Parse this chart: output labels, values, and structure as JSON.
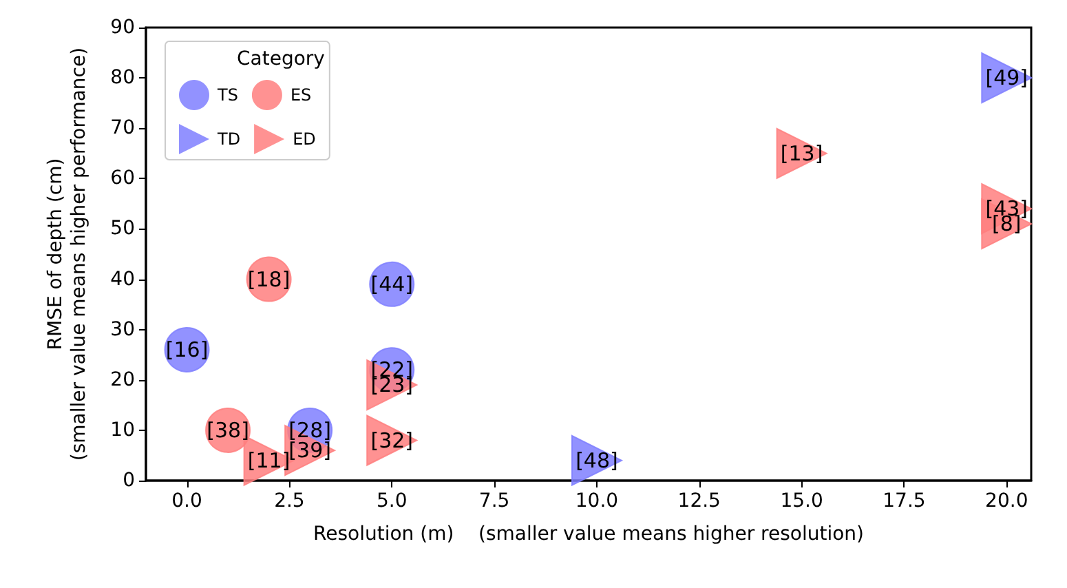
{
  "chart_data": {
    "type": "scatter",
    "xlabel": "Resolution (m)    (smaller value means higher resolution)",
    "ylabel": "RMSE of depth (cm)\n(smaller value means higher performance)",
    "legend_title": "Category",
    "legend": "top left",
    "xlim": [
      -1,
      20.6
    ],
    "ylim": [
      0,
      90
    ],
    "xticks": [
      {
        "value": 0,
        "label": "0.0"
      },
      {
        "value": 2.5,
        "label": "2.5"
      },
      {
        "value": 5,
        "label": "5.0"
      },
      {
        "value": 7.5,
        "label": "7.5"
      },
      {
        "value": 10,
        "label": "10.0"
      },
      {
        "value": 12.5,
        "label": "12.5"
      },
      {
        "value": 15,
        "label": "15.0"
      },
      {
        "value": 17.5,
        "label": "17.5"
      },
      {
        "value": 20,
        "label": "20.0"
      }
    ],
    "yticks": [
      0,
      10,
      20,
      30,
      40,
      50,
      60,
      70,
      80,
      90
    ],
    "series": [
      {
        "name": "TS",
        "color": "#7f7fff",
        "marker": "circle",
        "x": [
          0,
          5,
          5,
          3
        ],
        "values": [
          26,
          39,
          22,
          10
        ]
      },
      {
        "name": "ES",
        "color": "#ff7f7f",
        "marker": "circle",
        "x": [
          2,
          1
        ],
        "values": [
          40,
          10
        ]
      },
      {
        "name": "TD",
        "color": "#7f7fff",
        "marker": "triangle",
        "x": [
          10,
          20
        ],
        "values": [
          4,
          80
        ]
      },
      {
        "name": "ED",
        "color": "#ff7f7f",
        "marker": "triangle",
        "x": [
          15,
          20,
          20,
          2,
          3,
          5,
          5
        ],
        "values": [
          65,
          54,
          51,
          4,
          6,
          19,
          8
        ]
      }
    ],
    "annotations": [
      {
        "text": "[16]",
        "x": 0,
        "y": 26
      },
      {
        "text": "[44]",
        "x": 5,
        "y": 39
      },
      {
        "text": "[22]",
        "x": 5,
        "y": 22
      },
      {
        "text": "[28]",
        "x": 3,
        "y": 10
      },
      {
        "text": "[18]",
        "x": 2,
        "y": 40
      },
      {
        "text": "[38]",
        "x": 1,
        "y": 10
      },
      {
        "text": "[48]",
        "x": 10,
        "y": 4
      },
      {
        "text": "[49]",
        "x": 20,
        "y": 80
      },
      {
        "text": "[13]",
        "x": 15,
        "y": 65
      },
      {
        "text": "[43]",
        "x": 20,
        "y": 54
      },
      {
        "text": "[8]",
        "x": 20,
        "y": 51
      },
      {
        "text": "[11]",
        "x": 2,
        "y": 4
      },
      {
        "text": "[39]",
        "x": 3,
        "y": 6
      },
      {
        "text": "[23]",
        "x": 5,
        "y": 19
      },
      {
        "text": "[32]",
        "x": 5,
        "y": 8
      }
    ]
  }
}
